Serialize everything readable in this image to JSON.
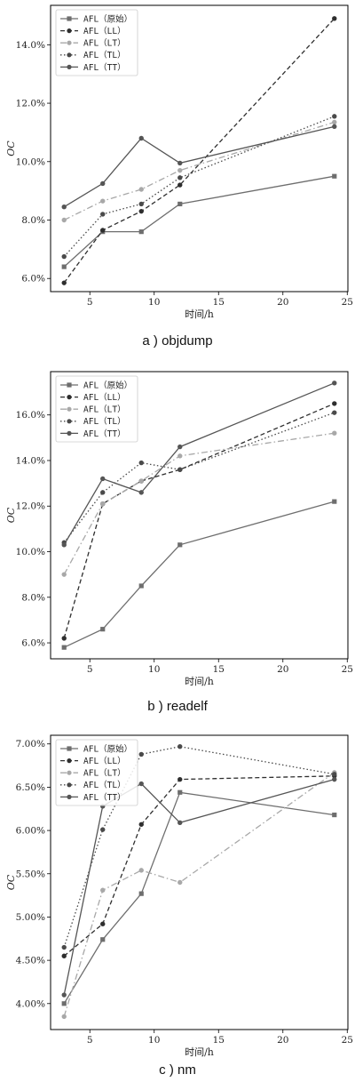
{
  "chart_data": [
    {
      "type": "line",
      "caption": "a ) objdump",
      "xlabel": "时间/h",
      "ylabel": "OC",
      "xlim": [
        1.95,
        25.05
      ],
      "ylim": [
        5.55,
        15.35
      ],
      "xticks": [
        5,
        10,
        15,
        20,
        25
      ],
      "yticks": [
        6,
        8,
        10,
        12,
        14
      ],
      "ytick_format": "%.1f%",
      "ytick_labels": [
        "6.0%",
        "8.0%",
        "10.0%",
        "12.0%",
        "14.0%"
      ],
      "legend_position": "top-left",
      "x": [
        3,
        6,
        9,
        12,
        24
      ],
      "series": [
        {
          "name": "AFL（原始）",
          "values": [
            6.4,
            7.6,
            7.6,
            8.55,
            9.5
          ],
          "color": "#6e6e6e",
          "dash": "",
          "marker": "square"
        },
        {
          "name": "AFL（LL）",
          "values": [
            5.85,
            7.65,
            8.3,
            9.2,
            14.9
          ],
          "color": "#2e2e2e",
          "dash": "5,3",
          "marker": "circle"
        },
        {
          "name": "AFL（LT）",
          "values": [
            8.0,
            8.65,
            9.05,
            9.7,
            11.35
          ],
          "color": "#a8a8a8",
          "dash": "7,3,1.5,3",
          "marker": "circle"
        },
        {
          "name": "AFL（TL）",
          "values": [
            6.75,
            8.2,
            8.55,
            9.45,
            11.55
          ],
          "color": "#4a4a4a",
          "dash": "1.5,2.5",
          "marker": "circle"
        },
        {
          "name": "AFL（TT）",
          "values": [
            8.45,
            9.25,
            10.8,
            9.95,
            11.2
          ],
          "color": "#555555",
          "dash": "",
          "marker": "circle"
        }
      ]
    },
    {
      "type": "line",
      "caption": "b ) readelf",
      "xlabel": "时间/h",
      "ylabel": "OC",
      "xlim": [
        1.95,
        25.05
      ],
      "ylim": [
        5.3,
        17.9
      ],
      "xticks": [
        5,
        10,
        15,
        20,
        25
      ],
      "yticks": [
        6,
        8,
        10,
        12,
        14,
        16
      ],
      "ytick_format": "%.1f%",
      "ytick_labels": [
        "6.0%",
        "8.0%",
        "10.0%",
        "12.0%",
        "14.0%",
        "16.0%"
      ],
      "legend_position": "top-left",
      "x": [
        3,
        6,
        9,
        12,
        24
      ],
      "series": [
        {
          "name": "AFL（原始）",
          "values": [
            5.8,
            6.6,
            8.5,
            10.3,
            12.2
          ],
          "color": "#6e6e6e",
          "dash": "",
          "marker": "square"
        },
        {
          "name": "AFL（LL）",
          "values": [
            6.2,
            12.1,
            13.1,
            13.6,
            16.5
          ],
          "color": "#2e2e2e",
          "dash": "5,3",
          "marker": "circle"
        },
        {
          "name": "AFL（LT）",
          "values": [
            9.0,
            12.1,
            13.1,
            14.2,
            15.2
          ],
          "color": "#a8a8a8",
          "dash": "7,3,1.5,3",
          "marker": "circle"
        },
        {
          "name": "AFL（TL）",
          "values": [
            10.4,
            12.6,
            13.9,
            13.6,
            16.1
          ],
          "color": "#4a4a4a",
          "dash": "1.5,2.5",
          "marker": "circle"
        },
        {
          "name": "AFL（TT）",
          "values": [
            10.3,
            13.2,
            12.6,
            14.6,
            17.4
          ],
          "color": "#555555",
          "dash": "",
          "marker": "circle"
        }
      ]
    },
    {
      "type": "line",
      "caption": "c ) nm",
      "xlabel": "时间/h",
      "ylabel": "OC",
      "xlim": [
        1.95,
        25.05
      ],
      "ylim": [
        3.7,
        7.1
      ],
      "xticks": [
        5,
        10,
        15,
        20,
        25
      ],
      "yticks": [
        4.0,
        4.5,
        5.0,
        5.5,
        6.0,
        6.5,
        7.0
      ],
      "ytick_format": "%.2f%",
      "ytick_labels": [
        "4.00%",
        "4.50%",
        "5.00%",
        "5.50%",
        "6.00%",
        "6.50%",
        "7.00%"
      ],
      "legend_position": "top-left",
      "x": [
        3,
        6,
        9,
        12,
        24
      ],
      "series": [
        {
          "name": "AFL（原始）",
          "values": [
            4.0,
            4.74,
            5.27,
            6.44,
            6.18
          ],
          "color": "#6e6e6e",
          "dash": "",
          "marker": "square"
        },
        {
          "name": "AFL（LL）",
          "values": [
            4.55,
            4.92,
            6.07,
            6.59,
            6.63
          ],
          "color": "#2e2e2e",
          "dash": "5,3",
          "marker": "circle"
        },
        {
          "name": "AFL（LT）",
          "values": [
            3.85,
            5.31,
            5.54,
            5.4,
            6.67
          ],
          "color": "#a8a8a8",
          "dash": "7,3,1.5,3",
          "marker": "circle"
        },
        {
          "name": "AFL（TL）",
          "values": [
            4.65,
            6.01,
            6.88,
            6.97,
            6.65
          ],
          "color": "#4a4a4a",
          "dash": "1.5,2.5",
          "marker": "circle"
        },
        {
          "name": "AFL（TT）",
          "values": [
            4.1,
            6.28,
            6.54,
            6.09,
            6.59
          ],
          "color": "#555555",
          "dash": "",
          "marker": "circle"
        }
      ]
    }
  ]
}
